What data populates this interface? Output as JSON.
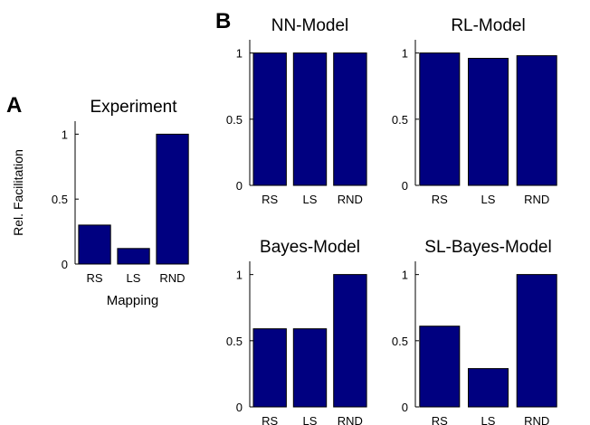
{
  "panel_labels": {
    "a": "A",
    "b": "B"
  },
  "colors": {
    "bar": "#000080",
    "axis": "#000000"
  },
  "chart_data": [
    {
      "type": "bar",
      "title": "Experiment",
      "xlabel": "Mapping",
      "ylabel": "Rel. Facilitation",
      "categories": [
        "RS",
        "LS",
        "RND"
      ],
      "values": [
        0.3,
        0.12,
        1.0
      ],
      "ylim": [
        0,
        1.1
      ],
      "yticks": [
        0,
        0.5,
        1
      ],
      "ytick_labels": [
        "0",
        "0.5",
        "1"
      ],
      "grid": false
    },
    {
      "type": "bar",
      "title": "NN-Model",
      "xlabel": "",
      "ylabel": "",
      "categories": [
        "RS",
        "LS",
        "RND"
      ],
      "values": [
        1.0,
        1.0,
        1.0
      ],
      "ylim": [
        0,
        1.1
      ],
      "yticks": [
        0,
        0.5,
        1
      ],
      "ytick_labels": [
        "0",
        "0.5",
        "1"
      ],
      "grid": false
    },
    {
      "type": "bar",
      "title": "RL-Model",
      "xlabel": "",
      "ylabel": "",
      "categories": [
        "RS",
        "LS",
        "RND"
      ],
      "values": [
        1.0,
        0.96,
        0.98
      ],
      "ylim": [
        0,
        1.1
      ],
      "yticks": [
        0,
        0.5,
        1
      ],
      "ytick_labels": [
        "0",
        "0.5",
        "1"
      ],
      "grid": false
    },
    {
      "type": "bar",
      "title": "Bayes-Model",
      "xlabel": "",
      "ylabel": "",
      "categories": [
        "RS",
        "LS",
        "RND"
      ],
      "values": [
        0.59,
        0.59,
        1.0
      ],
      "ylim": [
        0,
        1.1
      ],
      "yticks": [
        0,
        0.5,
        1
      ],
      "ytick_labels": [
        "0",
        "0.5",
        "1"
      ],
      "grid": false
    },
    {
      "type": "bar",
      "title": "SL-Bayes-Model",
      "xlabel": "",
      "ylabel": "",
      "categories": [
        "RS",
        "LS",
        "RND"
      ],
      "values": [
        0.61,
        0.29,
        1.0
      ],
      "ylim": [
        0,
        1.1
      ],
      "yticks": [
        0,
        0.5,
        1
      ],
      "ytick_labels": [
        "0",
        "0.5",
        "1"
      ],
      "grid": false
    }
  ]
}
